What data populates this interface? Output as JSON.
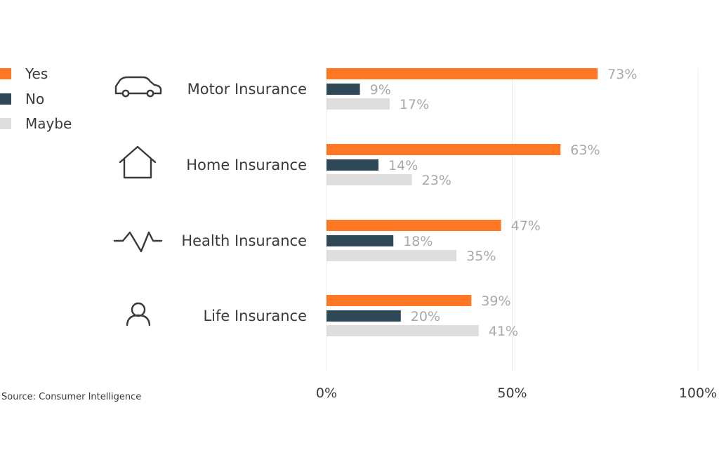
{
  "chart_data": {
    "type": "bar",
    "orientation": "horizontal",
    "categories": [
      "Motor Insurance",
      "Home Insurance",
      "Health Insurance",
      "Life Insurance"
    ],
    "category_icons": [
      "car-icon",
      "house-icon",
      "heartbeat-icon",
      "person-icon"
    ],
    "series": [
      {
        "name": "Yes",
        "color": "#ff7722",
        "values": [
          73,
          63,
          47,
          39
        ],
        "labels": [
          "73%",
          "63%",
          "47%",
          "39%"
        ]
      },
      {
        "name": "No",
        "color": "#2f4858",
        "values": [
          9,
          14,
          18,
          20
        ],
        "labels": [
          "9%",
          "14%",
          "18%",
          "20%"
        ]
      },
      {
        "name": "Maybe",
        "color": "#dededc",
        "values": [
          17,
          23,
          35,
          41
        ],
        "labels": [
          "17%",
          "23%",
          "35%",
          "41%"
        ]
      }
    ],
    "xlim": [
      0,
      100
    ],
    "x_ticks": [
      0,
      50,
      100
    ],
    "x_tick_labels": [
      "0%",
      "50%",
      "100%"
    ],
    "grid": true,
    "legend_position": "top-left",
    "source": "Source: Consumer Intelligence"
  }
}
